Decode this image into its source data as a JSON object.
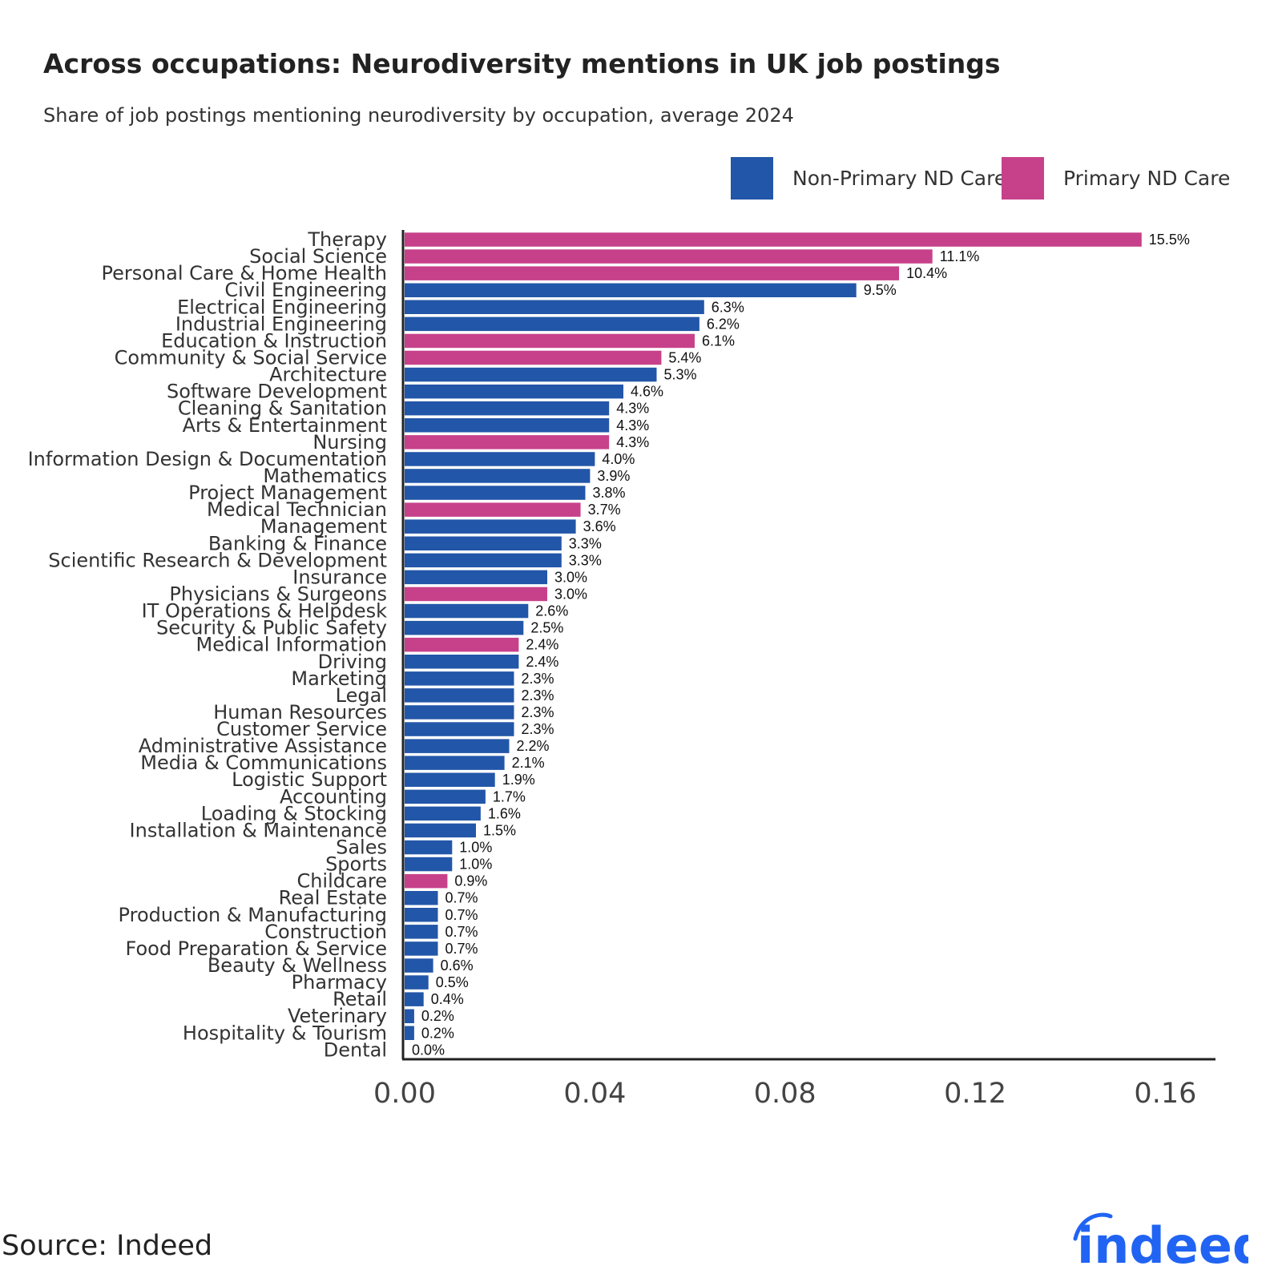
{
  "title": "Across occupations: Neurodiversity mentions in UK job postings",
  "subtitle": "Share of job postings mentioning neurodiversity by occupation, average 2024",
  "source": "Source: Indeed",
  "logo_text": "indeed",
  "colors": {
    "non_primary": "#2256A8",
    "primary": "#C7418A",
    "axis": "#222222",
    "logo": "#2164F3"
  },
  "legend": [
    {
      "label": "Non-Primary ND Care",
      "color": "#2256A8"
    },
    {
      "label": "Primary ND Care",
      "color": "#C7418A"
    }
  ],
  "chart_data": {
    "type": "bar",
    "orientation": "horizontal",
    "title": "Across occupations: Neurodiversity mentions in UK job postings",
    "subtitle": "Share of job postings mentioning neurodiversity by occupation, average 2024",
    "xlim": [
      0,
      0.17
    ],
    "xticks": [
      0.0,
      0.04,
      0.08,
      0.12,
      0.16
    ],
    "xtick_labels": [
      "0.00",
      "0.04",
      "0.08",
      "0.12",
      "0.16"
    ],
    "grid": false,
    "legend_position": "top-right",
    "series": [
      {
        "name": "Non-Primary ND Care",
        "color": "#2256A8"
      },
      {
        "name": "Primary ND Care",
        "color": "#C7418A"
      }
    ],
    "bars": [
      {
        "category": "Therapy",
        "value": 0.155,
        "label": "15.5%",
        "group": "Primary ND Care"
      },
      {
        "category": "Social Science",
        "value": 0.111,
        "label": "11.1%",
        "group": "Primary ND Care"
      },
      {
        "category": "Personal Care & Home Health",
        "value": 0.104,
        "label": "10.4%",
        "group": "Primary ND Care"
      },
      {
        "category": "Civil Engineering",
        "value": 0.095,
        "label": "9.5%",
        "group": "Non-Primary ND Care"
      },
      {
        "category": "Electrical Engineering",
        "value": 0.063,
        "label": "6.3%",
        "group": "Non-Primary ND Care"
      },
      {
        "category": "Industrial Engineering",
        "value": 0.062,
        "label": "6.2%",
        "group": "Non-Primary ND Care"
      },
      {
        "category": "Education & Instruction",
        "value": 0.061,
        "label": "6.1%",
        "group": "Primary ND Care"
      },
      {
        "category": "Community & Social Service",
        "value": 0.054,
        "label": "5.4%",
        "group": "Primary ND Care"
      },
      {
        "category": "Architecture",
        "value": 0.053,
        "label": "5.3%",
        "group": "Non-Primary ND Care"
      },
      {
        "category": "Software Development",
        "value": 0.046,
        "label": "4.6%",
        "group": "Non-Primary ND Care"
      },
      {
        "category": "Cleaning & Sanitation",
        "value": 0.043,
        "label": "4.3%",
        "group": "Non-Primary ND Care"
      },
      {
        "category": "Arts & Entertainment",
        "value": 0.043,
        "label": "4.3%",
        "group": "Non-Primary ND Care"
      },
      {
        "category": "Nursing",
        "value": 0.043,
        "label": "4.3%",
        "group": "Primary ND Care"
      },
      {
        "category": "Information Design & Documentation",
        "value": 0.04,
        "label": "4.0%",
        "group": "Non-Primary ND Care"
      },
      {
        "category": "Mathematics",
        "value": 0.039,
        "label": "3.9%",
        "group": "Non-Primary ND Care"
      },
      {
        "category": "Project Management",
        "value": 0.038,
        "label": "3.8%",
        "group": "Non-Primary ND Care"
      },
      {
        "category": "Medical Technician",
        "value": 0.037,
        "label": "3.7%",
        "group": "Primary ND Care"
      },
      {
        "category": "Management",
        "value": 0.036,
        "label": "3.6%",
        "group": "Non-Primary ND Care"
      },
      {
        "category": "Banking & Finance",
        "value": 0.033,
        "label": "3.3%",
        "group": "Non-Primary ND Care"
      },
      {
        "category": "Scientific Research & Development",
        "value": 0.033,
        "label": "3.3%",
        "group": "Non-Primary ND Care"
      },
      {
        "category": "Insurance",
        "value": 0.03,
        "label": "3.0%",
        "group": "Non-Primary ND Care"
      },
      {
        "category": "Physicians & Surgeons",
        "value": 0.03,
        "label": "3.0%",
        "group": "Primary ND Care"
      },
      {
        "category": "IT Operations & Helpdesk",
        "value": 0.026,
        "label": "2.6%",
        "group": "Non-Primary ND Care"
      },
      {
        "category": "Security & Public Safety",
        "value": 0.025,
        "label": "2.5%",
        "group": "Non-Primary ND Care"
      },
      {
        "category": "Medical Information",
        "value": 0.024,
        "label": "2.4%",
        "group": "Primary ND Care"
      },
      {
        "category": "Driving",
        "value": 0.024,
        "label": "2.4%",
        "group": "Non-Primary ND Care"
      },
      {
        "category": "Marketing",
        "value": 0.023,
        "label": "2.3%",
        "group": "Non-Primary ND Care"
      },
      {
        "category": "Legal",
        "value": 0.023,
        "label": "2.3%",
        "group": "Non-Primary ND Care"
      },
      {
        "category": "Human Resources",
        "value": 0.023,
        "label": "2.3%",
        "group": "Non-Primary ND Care"
      },
      {
        "category": "Customer Service",
        "value": 0.023,
        "label": "2.3%",
        "group": "Non-Primary ND Care"
      },
      {
        "category": "Administrative Assistance",
        "value": 0.022,
        "label": "2.2%",
        "group": "Non-Primary ND Care"
      },
      {
        "category": "Media & Communications",
        "value": 0.021,
        "label": "2.1%",
        "group": "Non-Primary ND Care"
      },
      {
        "category": "Logistic Support",
        "value": 0.019,
        "label": "1.9%",
        "group": "Non-Primary ND Care"
      },
      {
        "category": "Accounting",
        "value": 0.017,
        "label": "1.7%",
        "group": "Non-Primary ND Care"
      },
      {
        "category": "Loading & Stocking",
        "value": 0.016,
        "label": "1.6%",
        "group": "Non-Primary ND Care"
      },
      {
        "category": "Installation & Maintenance",
        "value": 0.015,
        "label": "1.5%",
        "group": "Non-Primary ND Care"
      },
      {
        "category": "Sales",
        "value": 0.01,
        "label": "1.0%",
        "group": "Non-Primary ND Care"
      },
      {
        "category": "Sports",
        "value": 0.01,
        "label": "1.0%",
        "group": "Non-Primary ND Care"
      },
      {
        "category": "Childcare",
        "value": 0.009,
        "label": "0.9%",
        "group": "Primary ND Care"
      },
      {
        "category": "Real Estate",
        "value": 0.007,
        "label": "0.7%",
        "group": "Non-Primary ND Care"
      },
      {
        "category": "Production & Manufacturing",
        "value": 0.007,
        "label": "0.7%",
        "group": "Non-Primary ND Care"
      },
      {
        "category": "Construction",
        "value": 0.007,
        "label": "0.7%",
        "group": "Non-Primary ND Care"
      },
      {
        "category": "Food Preparation & Service",
        "value": 0.007,
        "label": "0.7%",
        "group": "Non-Primary ND Care"
      },
      {
        "category": "Beauty & Wellness",
        "value": 0.006,
        "label": "0.6%",
        "group": "Non-Primary ND Care"
      },
      {
        "category": "Pharmacy",
        "value": 0.005,
        "label": "0.5%",
        "group": "Non-Primary ND Care"
      },
      {
        "category": "Retail",
        "value": 0.004,
        "label": "0.4%",
        "group": "Non-Primary ND Care"
      },
      {
        "category": "Veterinary",
        "value": 0.002,
        "label": "0.2%",
        "group": "Non-Primary ND Care"
      },
      {
        "category": "Hospitality & Tourism",
        "value": 0.002,
        "label": "0.2%",
        "group": "Non-Primary ND Care"
      },
      {
        "category": "Dental",
        "value": 0.0,
        "label": "0.0%",
        "group": "Non-Primary ND Care"
      }
    ]
  }
}
